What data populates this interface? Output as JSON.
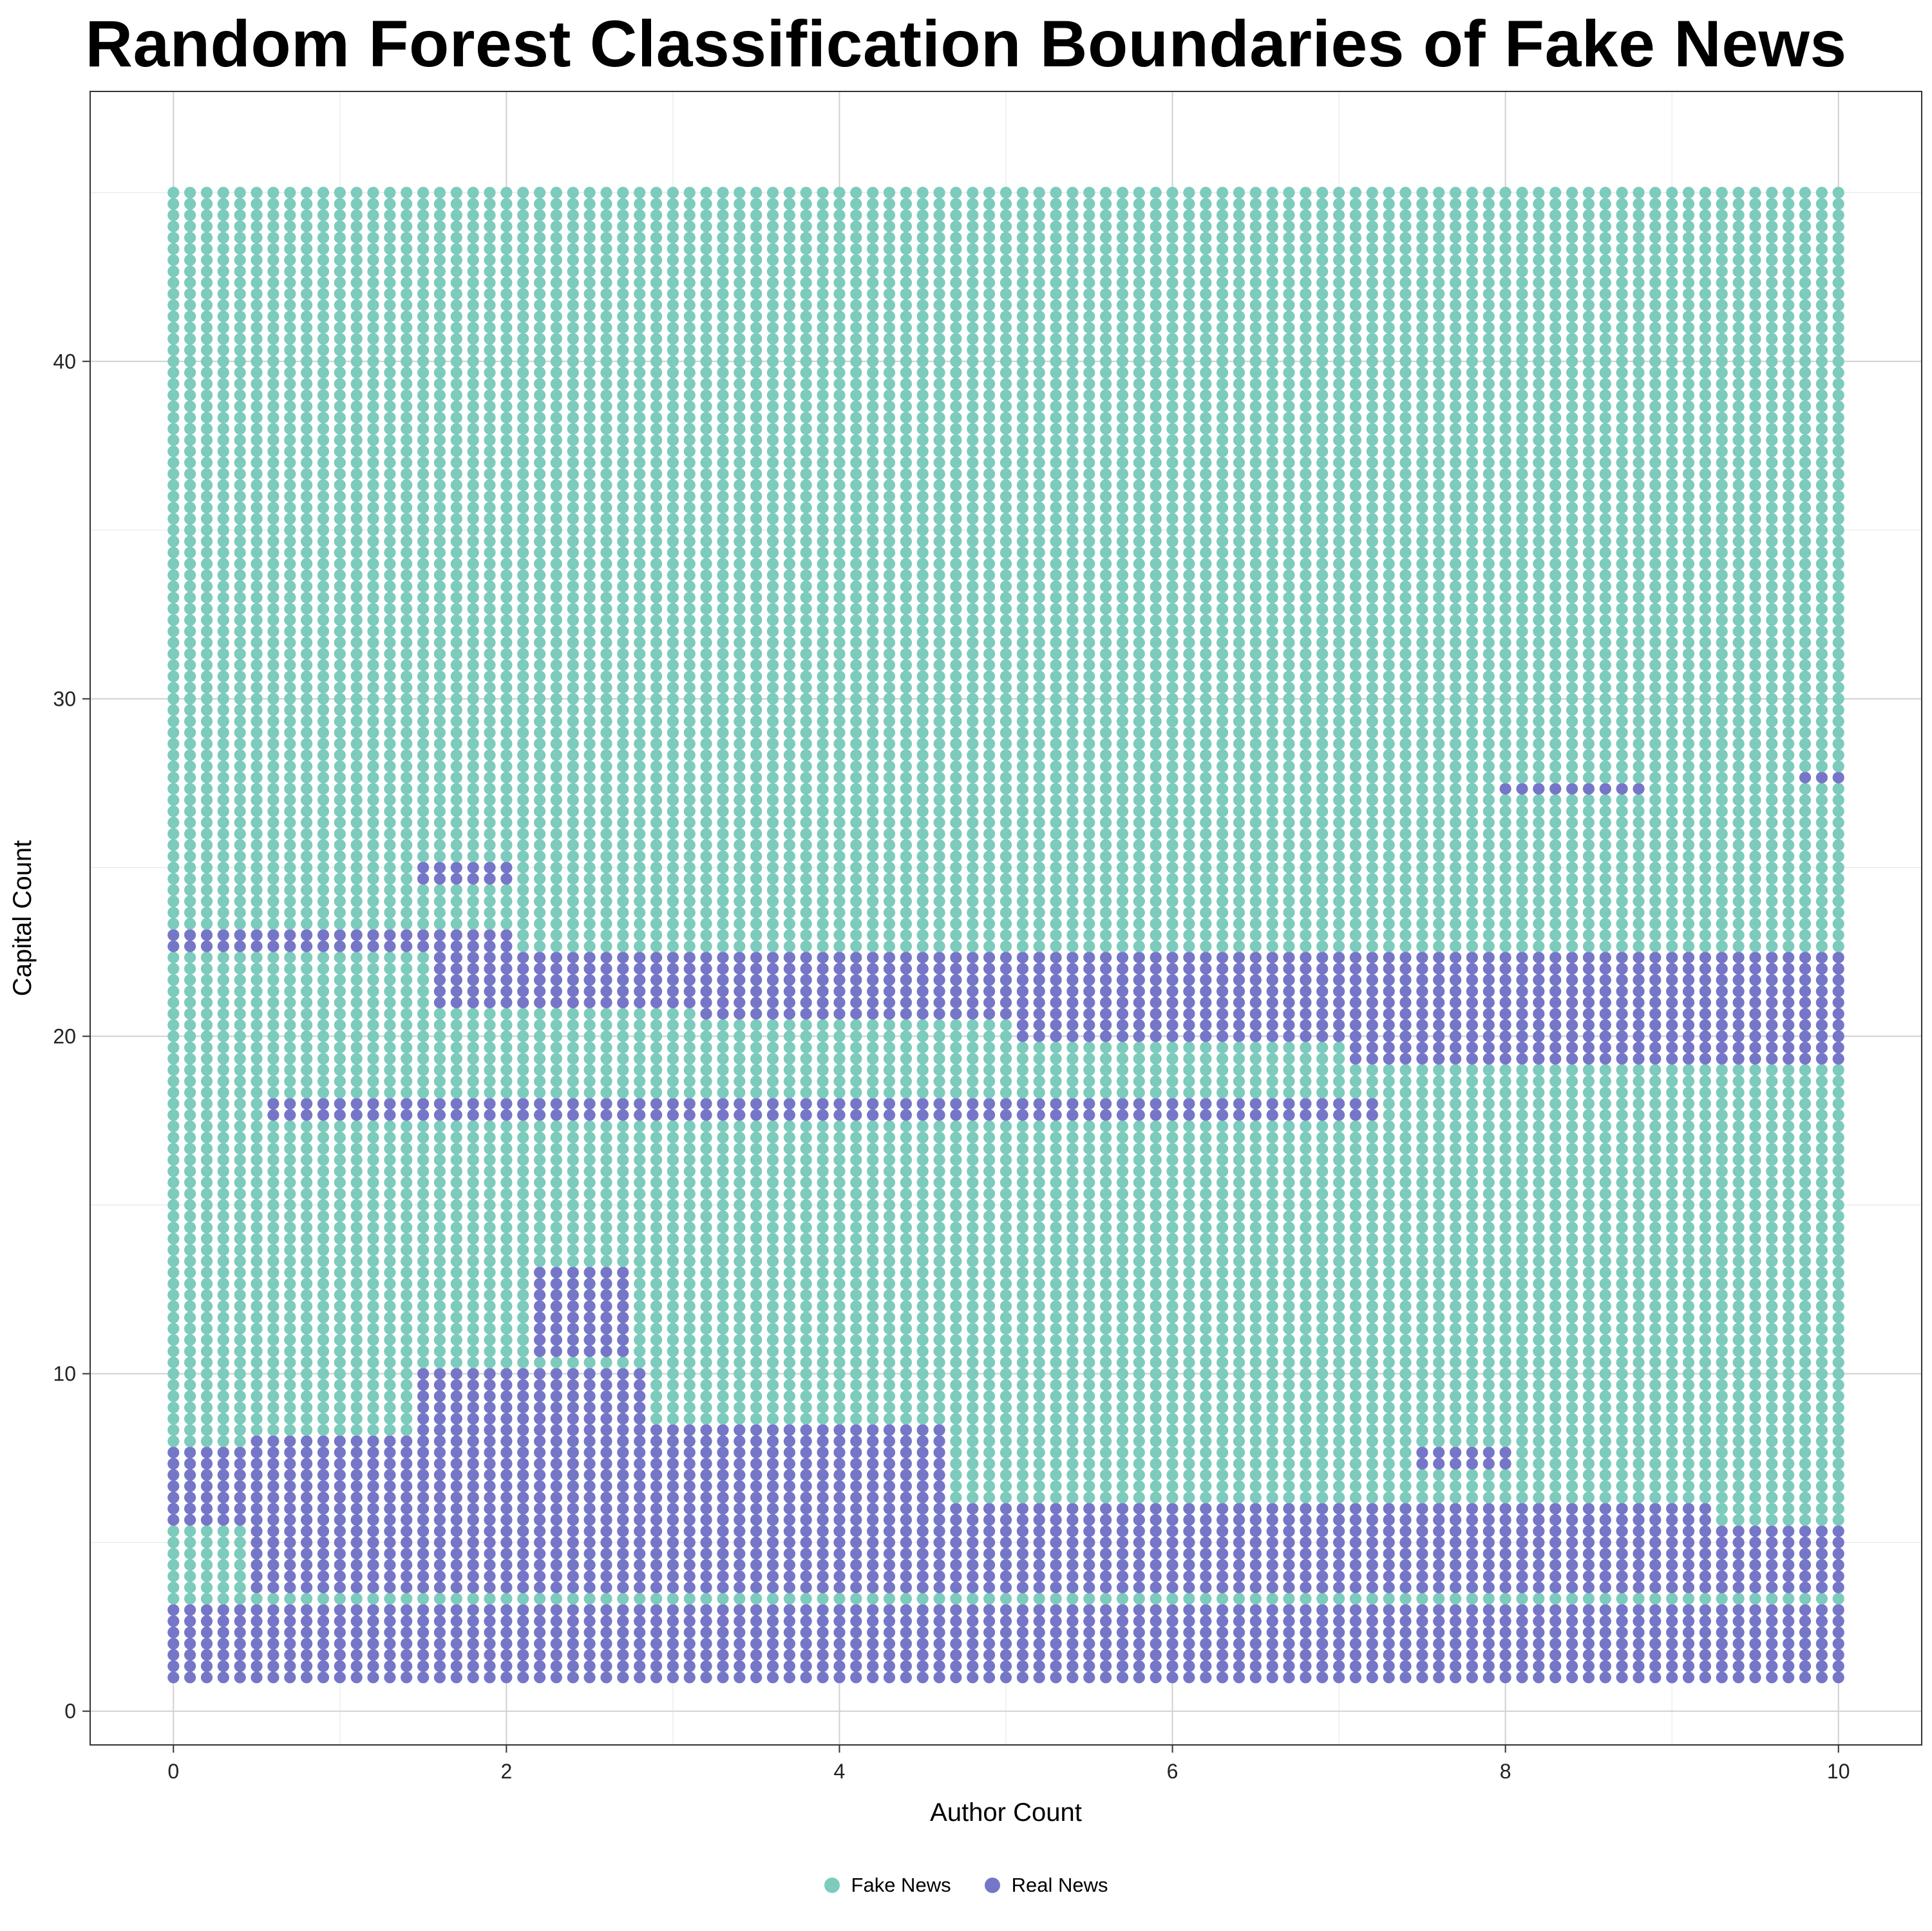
{
  "chart_data": {
    "type": "scatter",
    "title": "Random Forest Classification Boundaries of Fake News",
    "xlabel": "Author Count",
    "ylabel": "Capital Count",
    "xlim": [
      -0.5,
      10.5
    ],
    "ylim": [
      -1,
      48
    ],
    "x_ticks": [
      0,
      2,
      4,
      6,
      8,
      10
    ],
    "y_ticks": [
      0,
      10,
      20,
      30,
      40
    ],
    "grid": true,
    "legend_position": "bottom",
    "grid_points": {
      "x_start": 0,
      "x_end": 10,
      "x_count": 101,
      "y_start": 1,
      "y_end": 45,
      "y_count": 133
    },
    "series": [
      {
        "name": "Fake News",
        "color": "#7ccbbd"
      },
      {
        "name": "Real News",
        "color": "#7676c8"
      }
    ],
    "real_news_regions": [
      {
        "x": [
          0,
          10
        ],
        "y": [
          1,
          3.3
        ]
      },
      {
        "x": [
          0,
          0.45
        ],
        "y": [
          5.4,
          7.7
        ]
      },
      {
        "x": [
          0.5,
          10
        ],
        "y": [
          3.5,
          5.6
        ]
      },
      {
        "x": [
          0.5,
          2.4
        ],
        "y": [
          5.4,
          8
        ]
      },
      {
        "x": [
          1.5,
          2.8
        ],
        "y": [
          8,
          10
        ]
      },
      {
        "x": [
          2.4,
          4.6
        ],
        "y": [
          5.6,
          8.5
        ]
      },
      {
        "x": [
          4.6,
          9.2
        ],
        "y": [
          5.6,
          6.3
        ]
      },
      {
        "x": [
          0.6,
          7.2
        ],
        "y": [
          17.4,
          18.3
        ]
      },
      {
        "x": [
          1.6,
          3.2
        ],
        "y": [
          21,
          22.5
        ]
      },
      {
        "x": [
          3.2,
          10
        ],
        "y": [
          20.4,
          22.5
        ]
      },
      {
        "x": [
          5.1,
          10
        ],
        "y": [
          19.9,
          20.4
        ]
      },
      {
        "x": [
          7.1,
          10
        ],
        "y": [
          19.3,
          19.9
        ]
      },
      {
        "x": [
          0,
          2
        ],
        "y": [
          22.6,
          23.3
        ]
      },
      {
        "x": [
          1.5,
          2
        ],
        "y": [
          24.6,
          25.1
        ]
      },
      {
        "x": [
          8,
          8.8
        ],
        "y": [
          27.1,
          27.4
        ]
      },
      {
        "x": [
          9.8,
          10
        ],
        "y": [
          27.4,
          27.7
        ]
      },
      {
        "x": [
          7.5,
          8
        ],
        "y": [
          7.1,
          7.8
        ]
      },
      {
        "x": [
          2.2,
          2.7
        ],
        "y": [
          10.5,
          13
        ]
      }
    ],
    "note_values": "All other grid points are classified as Fake News"
  },
  "legend": {
    "items": [
      {
        "label": "Fake News",
        "color": "#7ccbbd"
      },
      {
        "label": "Real News",
        "color": "#7676c8"
      }
    ]
  }
}
